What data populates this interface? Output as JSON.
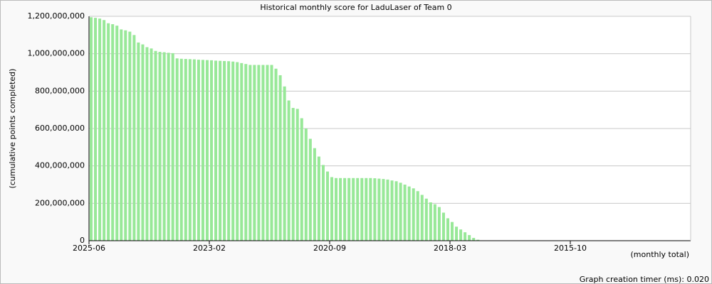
{
  "chart_data": {
    "type": "bar",
    "title": "Historical monthly score for LaduLaser of Team 0",
    "y_label": "(cumulative points completed)",
    "x_label": "(monthly total)",
    "footer": "Graph creation timer (ms): 0.020",
    "color": "#98e898",
    "grid": true,
    "categories": [
      "2025-06",
      null,
      null,
      null,
      null,
      null,
      null,
      null,
      null,
      null,
      null,
      null,
      null,
      null,
      null,
      null,
      null,
      null,
      null,
      null,
      null,
      null,
      null,
      null,
      null,
      null,
      null,
      null,
      "2023-02",
      null,
      null,
      null,
      null,
      null,
      null,
      null,
      null,
      null,
      null,
      null,
      null,
      null,
      null,
      null,
      null,
      null,
      null,
      null,
      null,
      null,
      null,
      null,
      null,
      null,
      null,
      null,
      "2020-09",
      null,
      null,
      null,
      null,
      null,
      null,
      null,
      null,
      null,
      null,
      null,
      null,
      null,
      null,
      null,
      null,
      null,
      null,
      null,
      null,
      null,
      null,
      null,
      null,
      null,
      null,
      null,
      "2018-03",
      null,
      null,
      null,
      null,
      null,
      null,
      null,
      null,
      null,
      null,
      null,
      null,
      null,
      null,
      null,
      null,
      null,
      null,
      null,
      null,
      null,
      null,
      null,
      null,
      null,
      null,
      null,
      "2015-10",
      null,
      null,
      null,
      null,
      null,
      null,
      null,
      null,
      null,
      null,
      null,
      null,
      null,
      null,
      null,
      null,
      null,
      null,
      null,
      null,
      null,
      null,
      null,
      null,
      null,
      null,
      null
    ],
    "values": [
      1195000000,
      1192000000,
      1188000000,
      1180000000,
      1163000000,
      1158000000,
      1150000000,
      1130000000,
      1125000000,
      1118000000,
      1100000000,
      1060000000,
      1050000000,
      1035000000,
      1028000000,
      1015000000,
      1010000000,
      1008000000,
      1005000000,
      1003000000,
      975000000,
      973000000,
      972000000,
      971000000,
      970000000,
      968000000,
      967000000,
      966000000,
      965000000,
      963000000,
      962000000,
      961000000,
      960000000,
      958000000,
      955000000,
      950000000,
      945000000,
      940000000,
      940000000,
      940000000,
      940000000,
      940000000,
      940000000,
      920000000,
      885000000,
      825000000,
      750000000,
      710000000,
      705000000,
      655000000,
      600000000,
      545000000,
      495000000,
      450000000,
      405000000,
      370000000,
      340000000,
      335000000,
      335000000,
      335000000,
      335000000,
      335000000,
      335000000,
      335000000,
      335000000,
      335000000,
      334000000,
      332000000,
      330000000,
      327000000,
      322000000,
      318000000,
      310000000,
      300000000,
      290000000,
      280000000,
      265000000,
      245000000,
      225000000,
      205000000,
      195000000,
      180000000,
      150000000,
      120000000,
      100000000,
      75000000,
      60000000,
      45000000,
      30000000,
      15000000,
      5000000,
      0,
      0,
      0,
      0,
      0,
      0,
      0,
      0,
      0,
      0,
      0,
      0,
      0,
      0,
      0,
      0,
      0,
      0,
      0,
      0,
      0,
      0,
      0,
      0,
      0,
      0,
      0,
      0,
      0,
      0,
      0,
      0,
      0,
      0,
      0,
      0,
      0,
      0,
      0,
      0,
      0,
      0,
      0,
      0,
      0,
      0,
      0,
      0,
      0
    ],
    "ylim": [
      0,
      1200000000
    ],
    "yticks": [
      0,
      {
        "value": 200000000,
        "label": "200,000,000"
      },
      {
        "value": 400000000,
        "label": "400,000,000"
      },
      {
        "value": 600000000,
        "label": "600,000,000"
      },
      {
        "value": 800000000,
        "label": "800,000,000"
      },
      {
        "value": 1000000000,
        "label": "1,000,000,000"
      },
      {
        "value": 1200000000,
        "label": "1,200,000,000"
      }
    ]
  }
}
